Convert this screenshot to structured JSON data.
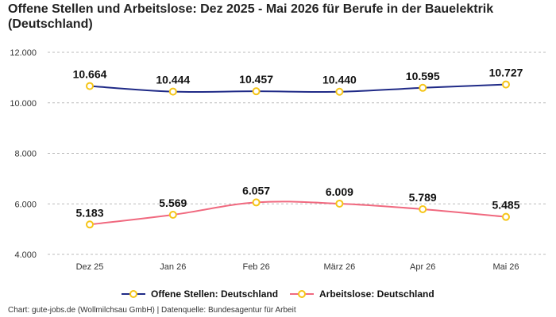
{
  "chart_data": {
    "type": "line",
    "title": "Offene Stellen und Arbeitslose: Dez 2025 - Mai 2026 für Berufe in der Bauelektrik (Deutschland)",
    "categories": [
      "Dez 25",
      "Jan 26",
      "Feb 26",
      "März 26",
      "Apr 26",
      "Mai 26"
    ],
    "yticks": [
      "4.000",
      "6.000",
      "8.000",
      "10.000",
      "12.000"
    ],
    "ylim": [
      4000,
      12000
    ],
    "grid": true,
    "legend_position": "bottom",
    "series": [
      {
        "name": "Offene Stellen: Deutschland",
        "color": "#1f2a87",
        "values": [
          10664,
          10444,
          10457,
          10440,
          10595,
          10727
        ],
        "labels": [
          "10.664",
          "10.444",
          "10.457",
          "10.440",
          "10.595",
          "10.727"
        ]
      },
      {
        "name": "Arbeitslose: Deutschland",
        "color": "#f0697f",
        "values": [
          5183,
          5569,
          6057,
          6009,
          5789,
          5485
        ],
        "labels": [
          "5.183",
          "5.569",
          "6.057",
          "6.009",
          "5.789",
          "5.485"
        ]
      }
    ],
    "marker_color": "#f5c518"
  },
  "footer": {
    "credit": "Chart: gute-jobs.de (Wollmilchsau GmbH) | Datenquelle: Bundesagentur für Arbeit"
  }
}
